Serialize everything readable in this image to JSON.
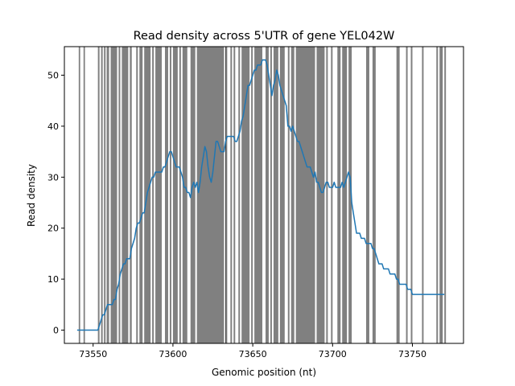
{
  "chart_data": {
    "type": "line",
    "title": "Read density across 5'UTR of gene YEL042W",
    "xlabel": "Genomic position (nt)",
    "ylabel": "Read density",
    "xlim": [
      73532,
      73782
    ],
    "ylim": [
      -2.6,
      55.6
    ],
    "xticks": [
      73550,
      73600,
      73650,
      73700,
      73750
    ],
    "yticks": [
      0,
      10,
      20,
      30,
      40,
      50
    ],
    "grid": false,
    "line_color": "#1f77b4",
    "band_color": "#808080",
    "bands": [
      [
        73541,
        73541.9
      ],
      [
        73544,
        73544.9
      ],
      [
        73553,
        73554
      ],
      [
        73555,
        73556
      ],
      [
        73556.8,
        73557.8
      ],
      [
        73558.5,
        73560
      ],
      [
        73561,
        73565
      ],
      [
        73566,
        73567
      ],
      [
        73568,
        73572
      ],
      [
        73573,
        73574.2
      ],
      [
        73577,
        73578
      ],
      [
        73579,
        73581
      ],
      [
        73582,
        73586
      ],
      [
        73587,
        73588
      ],
      [
        73589,
        73593
      ],
      [
        73595,
        73597
      ],
      [
        73598,
        73599
      ],
      [
        73600,
        73603
      ],
      [
        73604,
        73605
      ],
      [
        73606,
        73609
      ],
      [
        73611,
        73614
      ],
      [
        73615,
        73632
      ],
      [
        73633,
        73634
      ],
      [
        73636,
        73637
      ],
      [
        73638,
        73639
      ],
      [
        73641,
        73642
      ],
      [
        73643,
        73648
      ],
      [
        73649,
        73650
      ],
      [
        73651,
        73656
      ],
      [
        73658,
        73660
      ],
      [
        73661,
        73662
      ],
      [
        73663,
        73666
      ],
      [
        73667,
        73670
      ],
      [
        73672,
        73673
      ],
      [
        73674,
        73676
      ],
      [
        73677,
        73689
      ],
      [
        73690,
        73695
      ],
      [
        73696,
        73697
      ],
      [
        73699,
        73700
      ],
      [
        73703,
        73705
      ],
      [
        73706,
        73709
      ],
      [
        73710,
        73712
      ],
      [
        73721,
        73723
      ],
      [
        73725,
        73727
      ],
      [
        73740,
        73742
      ],
      [
        73746,
        73747
      ],
      [
        73749,
        73750
      ],
      [
        73756,
        73757
      ],
      [
        73765,
        73766
      ],
      [
        73767,
        73769
      ],
      [
        73770,
        73771
      ]
    ],
    "divider_x": 73633,
    "series": [
      {
        "x": [
          73540,
          73545,
          73550,
          73553,
          73554,
          73555,
          73556,
          73557,
          73558,
          73559,
          73560,
          73561,
          73562,
          73563,
          73564,
          73565,
          73566,
          73567,
          73568,
          73569,
          73570,
          73571,
          73572,
          73573,
          73574,
          73575,
          73576,
          73577,
          73578,
          73579,
          73580,
          73581,
          73582,
          73583,
          73584,
          73585,
          73586,
          73587,
          73588,
          73589,
          73590,
          73591,
          73592,
          73593,
          73594,
          73595,
          73596,
          73597,
          73598,
          73599,
          73600,
          73601,
          73602,
          73603,
          73604,
          73605,
          73606,
          73607,
          73608,
          73609,
          73610,
          73611,
          73612,
          73613,
          73614,
          73615,
          73616,
          73617,
          73618,
          73619,
          73620,
          73621,
          73622,
          73623,
          73624,
          73625,
          73626,
          73627,
          73628,
          73629,
          73630,
          73631,
          73632,
          73633,
          73634,
          73635,
          73636,
          73637,
          73638,
          73639,
          73640,
          73641,
          73642,
          73643,
          73644,
          73645,
          73646,
          73647,
          73648,
          73649,
          73650,
          73651,
          73652,
          73653,
          73654,
          73655,
          73656,
          73657,
          73658,
          73659,
          73660,
          73661,
          73662,
          73663,
          73664,
          73665,
          73666,
          73667,
          73668,
          73669,
          73670,
          73671,
          73672,
          73673,
          73674,
          73675,
          73676,
          73677,
          73678,
          73679,
          73680,
          73681,
          73682,
          73683,
          73684,
          73685,
          73686,
          73687,
          73688,
          73689,
          73690,
          73691,
          73692,
          73693,
          73694,
          73695,
          73696,
          73697,
          73698,
          73699,
          73700,
          73701,
          73702,
          73703,
          73704,
          73705,
          73706,
          73707,
          73708,
          73709,
          73710,
          73711,
          73712,
          73713,
          73714,
          73715,
          73716,
          73717,
          73718,
          73719,
          73720,
          73721,
          73722,
          73723,
          73724,
          73725,
          73726,
          73727,
          73728,
          73729,
          73730,
          73731,
          73732,
          73733,
          73734,
          73735,
          73736,
          73737,
          73738,
          73739,
          73740,
          73741,
          73742,
          73743,
          73744,
          73745,
          73746,
          73747,
          73748,
          73749,
          73750,
          73751,
          73752,
          73753,
          73754,
          73755,
          73756,
          73757,
          73758,
          73759,
          73760,
          73761,
          73762,
          73763,
          73764,
          73765,
          73766,
          73767,
          73768,
          73769,
          73770
        ],
        "y": [
          0,
          0,
          0,
          0,
          1,
          2,
          3,
          3,
          4,
          5,
          5,
          5,
          5,
          6,
          6,
          8,
          9,
          11,
          12,
          13,
          13,
          14,
          14,
          14,
          16,
          17,
          18,
          20,
          21,
          21,
          22,
          23,
          23,
          25,
          27,
          28,
          29,
          30,
          30,
          31,
          31,
          31,
          31,
          31,
          32,
          32,
          33,
          34,
          35,
          35,
          34,
          33,
          32,
          32,
          32,
          31,
          30,
          28,
          28,
          27,
          27,
          26,
          28,
          29,
          28,
          29,
          27,
          29,
          32,
          34,
          36,
          35,
          32,
          30,
          29,
          31,
          34,
          37,
          37,
          36,
          35,
          35,
          35,
          37,
          38,
          38,
          38,
          38,
          38,
          37,
          37,
          38,
          39,
          41,
          42,
          44,
          46,
          48,
          48,
          49,
          50,
          51,
          51,
          52,
          52,
          52,
          53,
          53,
          53,
          52,
          50,
          48,
          46,
          48,
          49,
          51,
          50,
          48,
          47,
          46,
          45,
          44,
          40,
          40,
          39,
          40,
          39,
          38,
          37,
          37,
          36,
          35,
          34,
          33,
          32,
          32,
          32,
          31,
          30,
          31,
          29,
          29,
          28,
          27,
          27,
          28,
          29,
          29,
          28,
          28,
          28,
          29,
          28,
          28,
          28,
          28,
          29,
          28,
          29,
          30,
          31,
          30,
          25,
          23,
          21,
          19,
          19,
          19,
          18,
          18,
          18,
          17,
          17,
          17,
          17,
          16,
          16,
          15,
          14,
          13,
          13,
          13,
          12,
          12,
          12,
          12,
          11,
          11,
          11,
          11,
          10,
          10,
          9,
          9,
          9,
          9,
          9,
          8,
          8,
          8,
          7,
          7,
          7,
          7,
          7,
          7,
          7,
          7,
          7,
          7,
          7,
          7,
          7,
          7,
          7,
          7,
          7,
          7,
          7,
          7,
          7
        ]
      }
    ]
  }
}
